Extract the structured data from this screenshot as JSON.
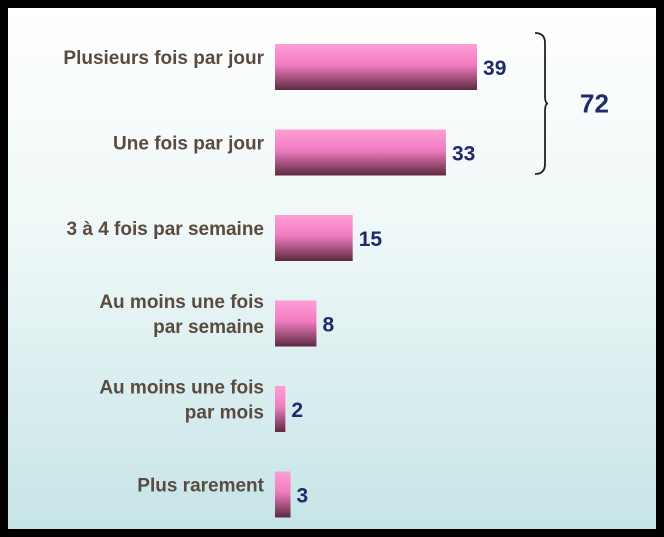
{
  "chart_data": {
    "type": "bar",
    "orientation": "horizontal",
    "categories": [
      [
        "Plusieurs fois par jour"
      ],
      [
        "Une fois par jour"
      ],
      [
        "3 à 4 fois par semaine"
      ],
      [
        "Au moins une fois",
        "par semaine"
      ],
      [
        "Au moins une fois",
        "par mois"
      ],
      [
        "Plus rarement"
      ]
    ],
    "values": [
      39,
      33,
      15,
      8,
      2,
      3
    ],
    "data_labels": [
      "39",
      "33",
      "15",
      "8",
      "2",
      "3"
    ],
    "bracket": {
      "covers": [
        0,
        1
      ],
      "label": "72"
    },
    "grid": false,
    "legend": "none",
    "colors": {
      "bar_light": "#ff9ed6",
      "bar_mid": "#f07cc0",
      "bar_dark": "#5c2a40",
      "value_text": "#1f2a6b",
      "category_text": "#5a4a40",
      "bracket": "#222222"
    }
  }
}
